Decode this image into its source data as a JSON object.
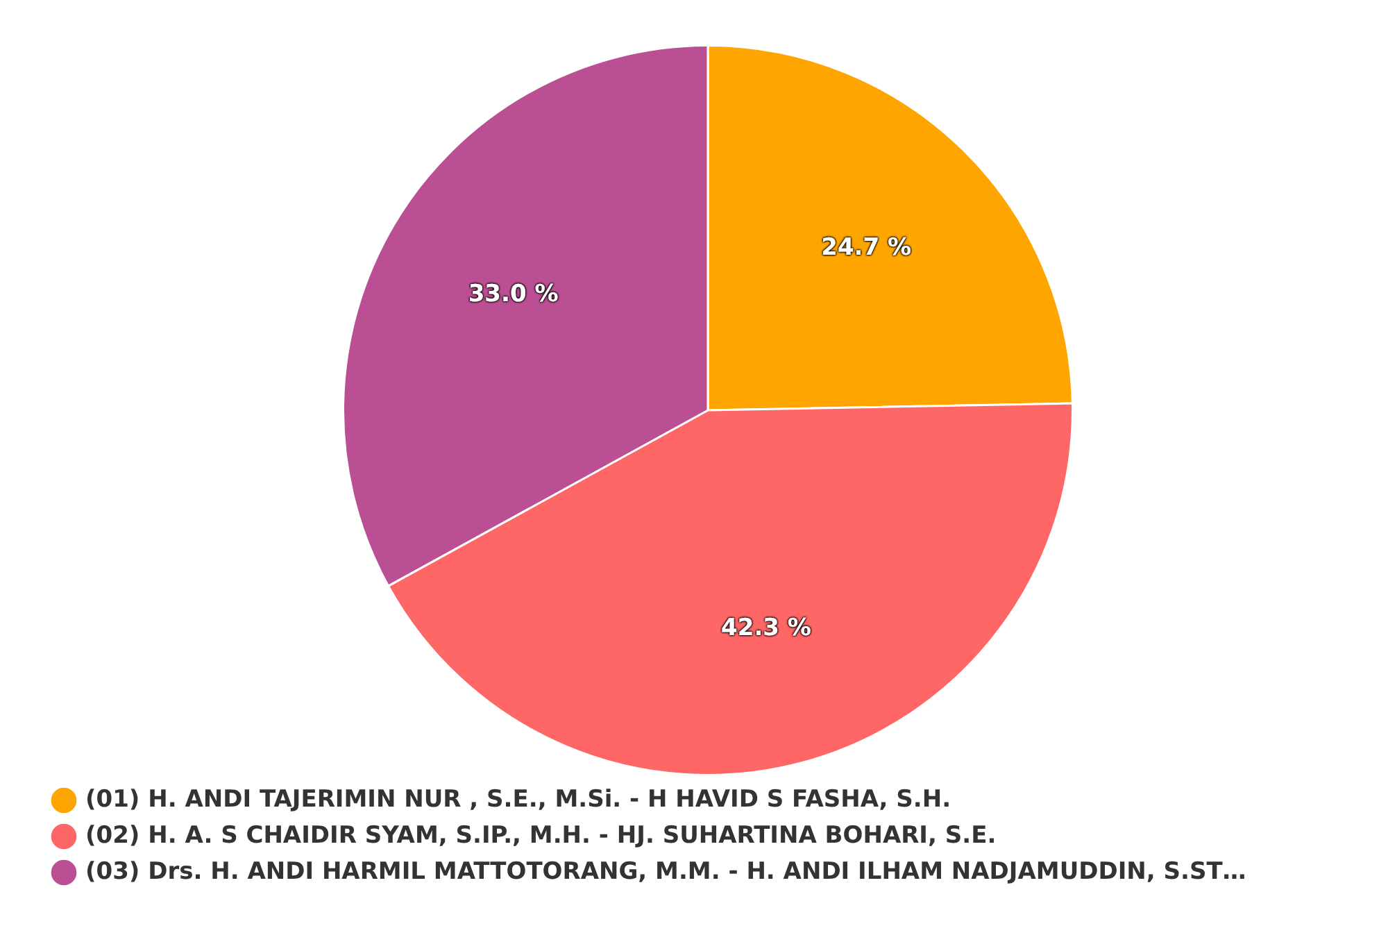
{
  "chart_data": {
    "type": "pie",
    "categories": [
      "(01) H. ANDI TAJERIMIN NUR , S.E., M.Si. - H HAVID S FASHA, S.H.",
      "(02) H. A. S CHAIDIR SYAM, S.IP., M.H. - HJ. SUHARTINA BOHARI, S.E.",
      "(03) Drs. H. ANDI HARMIL MATTOTORANG, M.M. - H. ANDI ILHAM NADJAMUDDIN, S.ST…"
    ],
    "values": [
      24.7,
      42.3,
      33.0
    ],
    "colors": [
      "#ffa500",
      "#ff6666",
      "#bb4f93"
    ],
    "value_labels": [
      "24.7 %",
      "42.3 %",
      "33.0 %"
    ],
    "legend": "bottom left"
  }
}
